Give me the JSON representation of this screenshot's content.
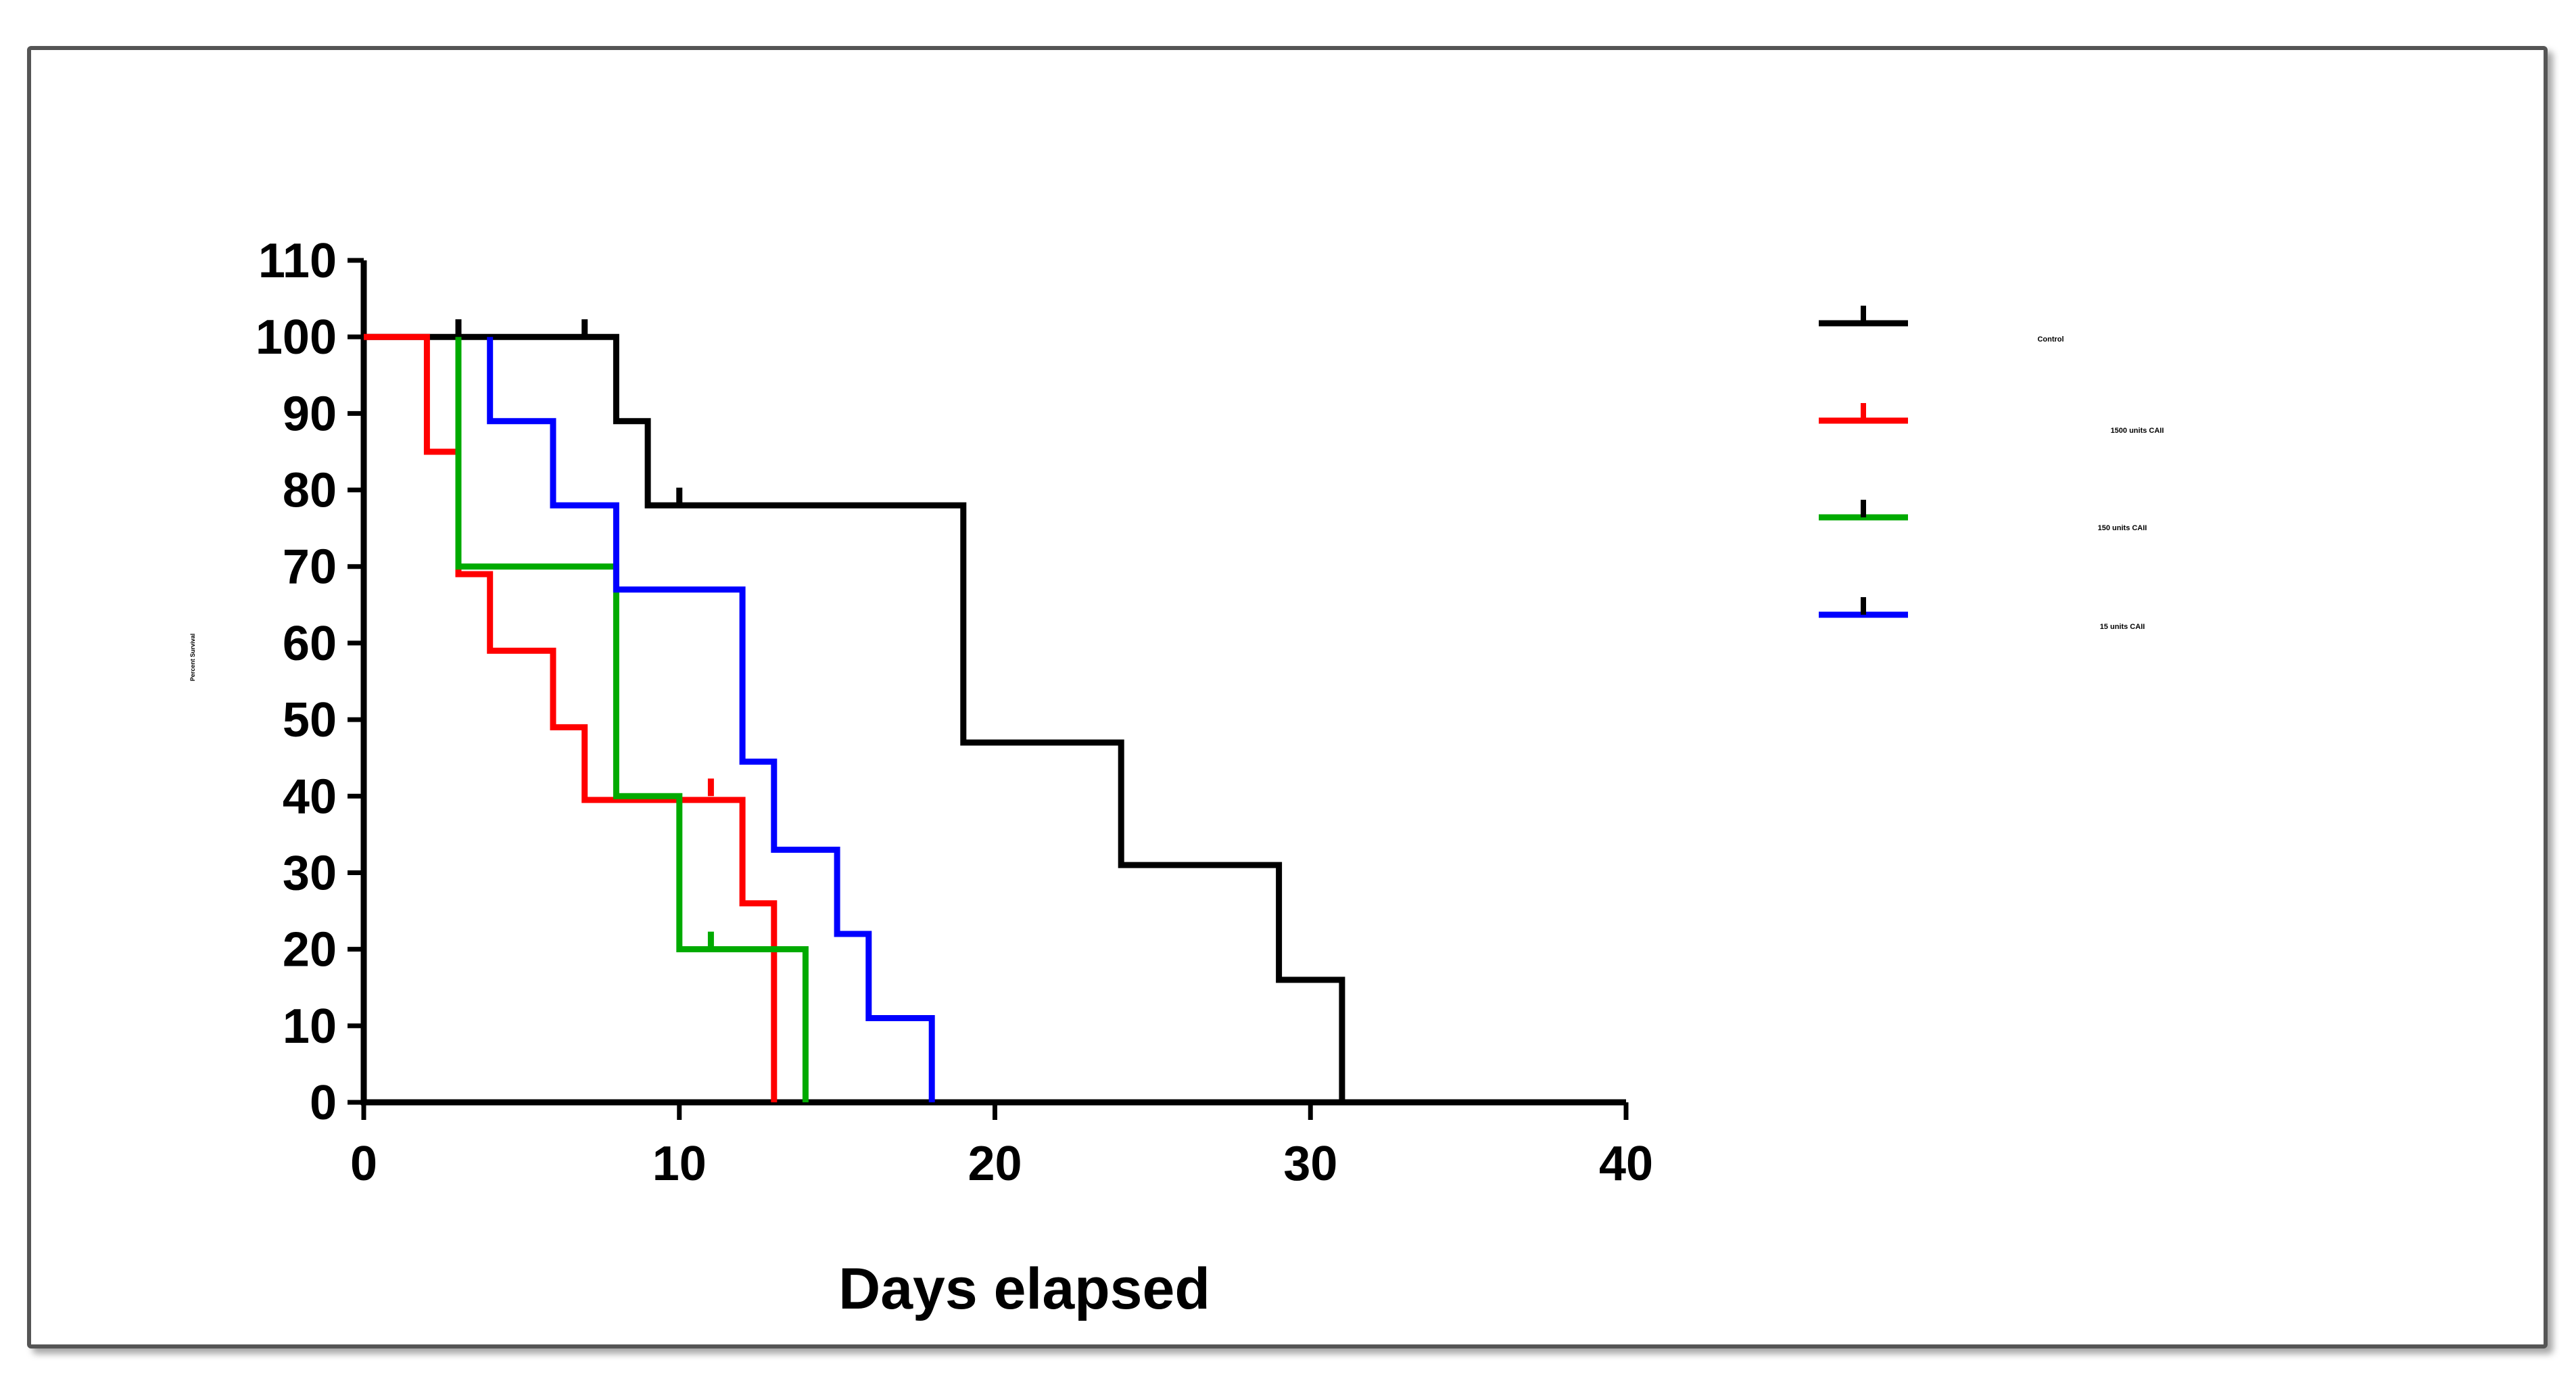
{
  "chart_data": {
    "type": "line",
    "subtype": "kaplan-meier step",
    "title": "",
    "xlabel": "Days elapsed",
    "ylabel": "Percent Survival",
    "xlim": [
      0,
      40
    ],
    "ylim": [
      0,
      110
    ],
    "xticks": [
      0,
      10,
      20,
      30,
      40
    ],
    "yticks": [
      0,
      10,
      20,
      30,
      40,
      50,
      60,
      70,
      80,
      90,
      100,
      110
    ],
    "grid": false,
    "legend_position": "right",
    "series": [
      {
        "name": "Control",
        "color": "#000000",
        "steps": [
          [
            0,
            100
          ],
          [
            8,
            100
          ],
          [
            8,
            89
          ],
          [
            9,
            89
          ],
          [
            9,
            78
          ],
          [
            19,
            78
          ],
          [
            19,
            47
          ],
          [
            24,
            47
          ],
          [
            24,
            31
          ],
          [
            29,
            31
          ],
          [
            29,
            16
          ],
          [
            31,
            16
          ],
          [
            31,
            0
          ]
        ],
        "censored": [
          [
            3,
            100
          ],
          [
            7,
            100
          ],
          [
            10,
            78
          ]
        ]
      },
      {
        "name": "1500 units CAII",
        "color": "#ff0000",
        "steps": [
          [
            0,
            100
          ],
          [
            2,
            100
          ],
          [
            2,
            85
          ],
          [
            3,
            85
          ],
          [
            3,
            69
          ],
          [
            4,
            69
          ],
          [
            4,
            59
          ],
          [
            6,
            59
          ],
          [
            6,
            49
          ],
          [
            7,
            49
          ],
          [
            7,
            39.5
          ],
          [
            12,
            39.5
          ],
          [
            12,
            26
          ],
          [
            13,
            26
          ],
          [
            13,
            0
          ]
        ],
        "censored": [
          [
            11,
            40
          ]
        ]
      },
      {
        "name": "150 units CAII",
        "color": "#00aa00",
        "steps": [
          [
            3,
            100
          ],
          [
            3,
            85
          ],
          [
            3,
            70
          ],
          [
            8,
            70
          ],
          [
            8,
            40
          ],
          [
            10,
            40
          ],
          [
            10,
            20
          ],
          [
            14,
            20
          ],
          [
            14,
            0
          ]
        ],
        "censored": [
          [
            11,
            20
          ]
        ]
      },
      {
        "name": "15 units CAII",
        "color": "#0000ff",
        "steps": [
          [
            4,
            100
          ],
          [
            4,
            89
          ],
          [
            6,
            89
          ],
          [
            6,
            78
          ],
          [
            8,
            78
          ],
          [
            8,
            67
          ],
          [
            12,
            67
          ],
          [
            12,
            44.5
          ],
          [
            13,
            44.5
          ],
          [
            13,
            33
          ],
          [
            15,
            33
          ],
          [
            15,
            22
          ],
          [
            16,
            22
          ],
          [
            16,
            11
          ],
          [
            18,
            11
          ],
          [
            18,
            0
          ]
        ],
        "censored": []
      }
    ]
  }
}
